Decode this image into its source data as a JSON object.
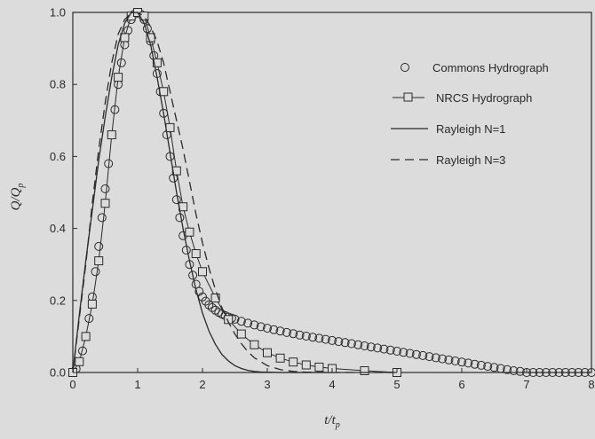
{
  "chart_data": {
    "type": "line",
    "title": "",
    "xlabel": {
      "main": "t/t",
      "sub": "p"
    },
    "ylabel": {
      "main": "Q/Q",
      "sub": "p"
    },
    "xlim": [
      0,
      8
    ],
    "ylim": [
      0,
      1.0
    ],
    "xticks": [
      "0",
      "1",
      "2",
      "3",
      "4",
      "5",
      "6",
      "7",
      "8"
    ],
    "yticks": [
      "0.0",
      "0.2",
      "0.4",
      "0.6",
      "0.8",
      "1.0"
    ],
    "grid": false,
    "legend_position": "top-right",
    "colors": {
      "ink": "#2a2a2a",
      "background": "#dcdcdc"
    },
    "series": [
      {
        "name": "Commons Hydrograph",
        "style": "circle-markers",
        "x": [
          0,
          0.05,
          0.1,
          0.15,
          0.2,
          0.25,
          0.3,
          0.35,
          0.4,
          0.45,
          0.5,
          0.55,
          0.6,
          0.65,
          0.7,
          0.75,
          0.8,
          0.85,
          0.9,
          0.95,
          1.0,
          1.05,
          1.1,
          1.15,
          1.2,
          1.25,
          1.3,
          1.35,
          1.4,
          1.45,
          1.5,
          1.55,
          1.6,
          1.65,
          1.7,
          1.75,
          1.8,
          1.85,
          1.9,
          1.95,
          2.0,
          2.05,
          2.1,
          2.15,
          2.2,
          2.25,
          2.3,
          2.35,
          2.4,
          2.45,
          2.5,
          2.6,
          2.7,
          2.8,
          2.9,
          3.0,
          3.1,
          3.2,
          3.3,
          3.4,
          3.5,
          3.6,
          3.7,
          3.8,
          3.9,
          4.0,
          4.1,
          4.2,
          4.3,
          4.4,
          4.5,
          4.6,
          4.7,
          4.8,
          4.9,
          5.0,
          5.1,
          5.2,
          5.3,
          5.4,
          5.5,
          5.6,
          5.7,
          5.8,
          5.9,
          6.0,
          6.1,
          6.2,
          6.3,
          6.4,
          6.5,
          6.6,
          6.7,
          6.8,
          6.9,
          7.0,
          7.1,
          7.2,
          7.3,
          7.4,
          7.5,
          7.6,
          7.7,
          7.8,
          7.9,
          8.0
        ],
        "y": [
          0.0,
          0.01,
          0.03,
          0.06,
          0.1,
          0.15,
          0.21,
          0.28,
          0.35,
          0.43,
          0.51,
          0.58,
          0.66,
          0.73,
          0.8,
          0.86,
          0.91,
          0.95,
          0.98,
          0.995,
          1.0,
          0.995,
          0.98,
          0.955,
          0.92,
          0.88,
          0.83,
          0.78,
          0.72,
          0.66,
          0.6,
          0.54,
          0.48,
          0.43,
          0.38,
          0.34,
          0.3,
          0.27,
          0.245,
          0.225,
          0.21,
          0.198,
          0.188,
          0.18,
          0.173,
          0.167,
          0.162,
          0.158,
          0.154,
          0.151,
          0.148,
          0.142,
          0.137,
          0.132,
          0.127,
          0.123,
          0.119,
          0.115,
          0.111,
          0.108,
          0.104,
          0.101,
          0.098,
          0.095,
          0.092,
          0.089,
          0.086,
          0.083,
          0.08,
          0.077,
          0.074,
          0.071,
          0.068,
          0.065,
          0.062,
          0.059,
          0.056,
          0.053,
          0.05,
          0.047,
          0.044,
          0.041,
          0.038,
          0.035,
          0.032,
          0.029,
          0.026,
          0.023,
          0.02,
          0.017,
          0.014,
          0.011,
          0.008,
          0.005,
          0.003,
          0.0,
          0.0,
          0.0,
          0.0,
          0.0,
          0.0,
          0.0,
          0.0,
          0.0,
          0.0,
          0.0
        ]
      },
      {
        "name": "NRCS Hydrograph",
        "style": "line-square-markers",
        "x": [
          0,
          0.1,
          0.2,
          0.3,
          0.4,
          0.5,
          0.6,
          0.7,
          0.8,
          0.9,
          1.0,
          1.1,
          1.2,
          1.3,
          1.4,
          1.5,
          1.6,
          1.7,
          1.8,
          1.9,
          2.0,
          2.2,
          2.4,
          2.6,
          2.8,
          3.0,
          3.2,
          3.4,
          3.6,
          3.8,
          4.0,
          4.5,
          5.0
        ],
        "y": [
          0.0,
          0.03,
          0.1,
          0.19,
          0.31,
          0.47,
          0.66,
          0.82,
          0.93,
          0.99,
          1.0,
          0.99,
          0.93,
          0.86,
          0.78,
          0.68,
          0.56,
          0.46,
          0.39,
          0.33,
          0.28,
          0.207,
          0.147,
          0.107,
          0.077,
          0.055,
          0.04,
          0.029,
          0.021,
          0.015,
          0.011,
          0.005,
          0.0
        ]
      },
      {
        "name": "Rayleigh N=1",
        "style": "solid",
        "x": [
          0,
          0.1,
          0.2,
          0.3,
          0.4,
          0.5,
          0.6,
          0.7,
          0.8,
          0.9,
          1.0,
          1.1,
          1.2,
          1.3,
          1.4,
          1.5,
          1.6,
          1.7,
          1.8,
          1.9,
          2.0,
          2.1,
          2.2,
          2.3,
          2.4,
          2.5,
          2.6,
          2.7,
          2.8,
          2.9,
          3.0,
          3.2,
          3.5,
          4.0
        ],
        "y": [
          0.0,
          0.16,
          0.31,
          0.45,
          0.59,
          0.71,
          0.82,
          0.91,
          0.97,
          0.999,
          1.0,
          0.97,
          0.91,
          0.82,
          0.72,
          0.61,
          0.5,
          0.4,
          0.31,
          0.23,
          0.165,
          0.115,
          0.078,
          0.05,
          0.032,
          0.019,
          0.011,
          0.006,
          0.003,
          0.0015,
          0.0007,
          0.0,
          0.0,
          0.0
        ]
      },
      {
        "name": "Rayleigh N=3",
        "style": "dashed",
        "x": [
          0,
          0.1,
          0.2,
          0.3,
          0.4,
          0.5,
          0.6,
          0.7,
          0.8,
          0.9,
          1.0,
          1.1,
          1.2,
          1.3,
          1.4,
          1.5,
          1.6,
          1.7,
          1.8,
          1.9,
          2.0,
          2.1,
          2.2,
          2.3,
          2.4,
          2.5,
          2.6,
          2.7,
          2.8,
          3.0,
          3.2,
          3.4,
          3.6,
          4.0,
          4.5,
          5.0
        ],
        "y": [
          0.0,
          0.15,
          0.3,
          0.47,
          0.62,
          0.75,
          0.86,
          0.94,
          0.98,
          0.998,
          1.0,
          0.99,
          0.96,
          0.92,
          0.86,
          0.78,
          0.7,
          0.62,
          0.53,
          0.44,
          0.36,
          0.29,
          0.23,
          0.18,
          0.14,
          0.107,
          0.08,
          0.058,
          0.041,
          0.019,
          0.008,
          0.003,
          0.001,
          0.0,
          0.0,
          0.0
        ]
      }
    ]
  }
}
